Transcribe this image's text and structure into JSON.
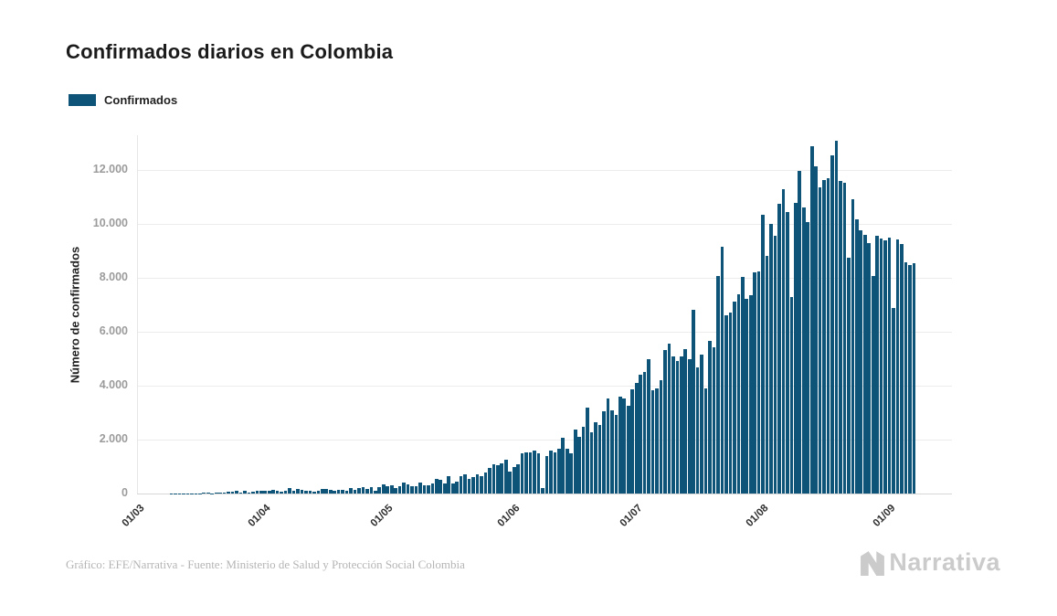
{
  "header": {
    "title": "Confirmados diarios en Colombia"
  },
  "legend": {
    "label": "Confirmados",
    "swatch_color": "#0e5479"
  },
  "footer": {
    "credit": "Gráfico: EFE/Narrativa - Fuente: Ministerio de Salud y Protección Social Colombia",
    "logo_text": "Narrativa"
  },
  "chart_data": {
    "type": "bar",
    "title": "Confirmados diarios en Colombia",
    "xlabel": "",
    "ylabel": "Número de confirmados",
    "ylim": [
      0,
      13280
    ],
    "grid": "horizontal",
    "legend_position": "top-left",
    "bar_color": "#0e5479",
    "y_ticks": [
      {
        "value": 0,
        "label": "0"
      },
      {
        "value": 2000,
        "label": "2.000"
      },
      {
        "value": 4000,
        "label": "4.000"
      },
      {
        "value": 6000,
        "label": "6.000"
      },
      {
        "value": 8000,
        "label": "8.000"
      },
      {
        "value": 10000,
        "label": "10.000"
      },
      {
        "value": 12000,
        "label": "12.000"
      }
    ],
    "x_ticks": [
      {
        "index": 0,
        "label": "01/03"
      },
      {
        "index": 31,
        "label": "01/04"
      },
      {
        "index": 61,
        "label": "01/05"
      },
      {
        "index": 92,
        "label": "01/06"
      },
      {
        "index": 122,
        "label": "01/07"
      },
      {
        "index": 153,
        "label": "01/08"
      },
      {
        "index": 184,
        "label": "01/09"
      }
    ],
    "series": [
      {
        "name": "Confirmados",
        "start_date": "01/03",
        "frequency": "daily",
        "values": [
          0,
          0,
          0,
          0,
          0,
          1,
          1,
          2,
          6,
          3,
          3,
          4,
          9,
          8,
          11,
          12,
          20,
          37,
          15,
          48,
          50,
          21,
          71,
          72,
          92,
          34,
          105,
          46,
          70,
          96,
          108,
          111,
          116,
          134,
          101,
          79,
          94,
          201,
          88,
          157,
          128,
          106,
          94,
          65,
          105,
          170,
          185,
          129,
          113,
          120,
          127,
          90,
          212,
          127,
          192,
          243,
          162,
          222,
          96,
          245,
          350,
          275,
          317,
          210,
          259,
          396,
          340,
          258,
          283,
          406,
          297,
          315,
          390,
          526,
          506,
          389,
          631,
          389,
          447,
          639,
          714,
          544,
          603,
          704,
          653,
          793,
          943,
          1100,
          1040,
          1120,
          1260,
          820,
          980,
          1100,
          1480,
          1520,
          1520,
          1600,
          1480,
          210,
          1400,
          1600,
          1530,
          1650,
          2070,
          1650,
          1490,
          2390,
          2110,
          2480,
          3170,
          2270,
          2660,
          2530,
          3060,
          3540,
          3100,
          2900,
          3600,
          3530,
          3270,
          3870,
          4100,
          4400,
          4500,
          5000,
          3820,
          3900,
          4210,
          5330,
          5550,
          5080,
          4900,
          5080,
          5360,
          4990,
          6800,
          4680,
          5150,
          3900,
          5660,
          5420,
          8070,
          9150,
          6610,
          6710,
          7120,
          7390,
          8030,
          7220,
          7360,
          8200,
          8240,
          10340,
          8810,
          10000,
          9560,
          10750,
          11290,
          10440,
          7290,
          10780,
          11970,
          10620,
          10060,
          12880,
          12150,
          11360,
          11640,
          11700,
          12540,
          13100,
          11600,
          11530,
          8760,
          10900,
          10170,
          9770,
          9600,
          9300,
          8080,
          9560,
          9450,
          9400,
          9500,
          6880,
          9430,
          9260,
          8590,
          8480,
          8540
        ]
      }
    ]
  }
}
